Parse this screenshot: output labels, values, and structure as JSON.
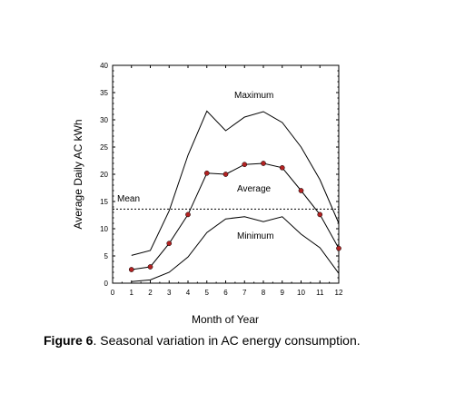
{
  "chart_data": {
    "type": "line",
    "xlabel": "Month of Year",
    "ylabel": "Average Daily AC kWh",
    "xlim": [
      0,
      12
    ],
    "ylim": [
      0,
      40
    ],
    "x_ticks": [
      0,
      1,
      2,
      3,
      4,
      5,
      6,
      7,
      8,
      9,
      10,
      11,
      12
    ],
    "y_ticks": [
      0,
      5,
      10,
      15,
      20,
      25,
      30,
      35,
      40
    ],
    "grid": false,
    "legend": "none",
    "series": [
      {
        "name": "Maximum",
        "x": [
          1,
          2,
          3,
          4,
          5,
          6,
          7,
          8,
          9,
          10,
          11,
          12
        ],
        "values": [
          5.1,
          6.0,
          13.3,
          23.5,
          31.6,
          28.0,
          30.5,
          31.5,
          29.5,
          25.0,
          19.0,
          11.0
        ],
        "markers": false,
        "color": "#000000"
      },
      {
        "name": "Average",
        "x": [
          1,
          2,
          3,
          4,
          5,
          6,
          7,
          8,
          9,
          10,
          11,
          12
        ],
        "values": [
          2.5,
          3.0,
          7.3,
          12.6,
          20.2,
          20.0,
          21.8,
          22.0,
          21.2,
          17.0,
          12.6,
          6.4
        ],
        "markers": true,
        "marker_color": "#b22222",
        "color": "#000000"
      },
      {
        "name": "Minimum",
        "x": [
          1,
          2,
          3,
          4,
          5,
          6,
          7,
          8,
          9,
          10,
          11,
          12
        ],
        "values": [
          0.3,
          0.6,
          2.0,
          4.8,
          9.3,
          11.8,
          12.2,
          11.3,
          12.2,
          9.0,
          6.5,
          1.8
        ],
        "markers": false,
        "color": "#000000"
      }
    ],
    "reference_line": {
      "label": "Mean",
      "y": 13.6,
      "style": "dashed"
    },
    "annotations": [
      "Maximum",
      "Average",
      "Minimum",
      "Mean"
    ]
  },
  "caption": {
    "figure_label": "Figure 6",
    "text": ".  Seasonal variation in AC energy consumption."
  }
}
